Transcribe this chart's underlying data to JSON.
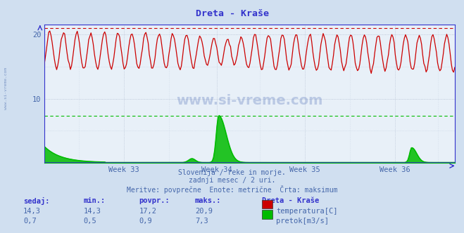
{
  "title": "Dreta - Kraše",
  "bg_color": "#d0dff0",
  "plot_bg_color": "#e8f0f8",
  "grid_color_major": "#b0bcd0",
  "grid_color_minor": "#c8d4e4",
  "temp_color": "#cc0000",
  "flow_color": "#00bb00",
  "axis_color": "#3333cc",
  "text_color": "#4466aa",
  "blue_line_color": "#3333cc",
  "ylabel_temp": "temperatura[C]",
  "ylabel_flow": "pretok[m3/s]",
  "week_labels": [
    "Week 33",
    "Week 34",
    "Week 35",
    "Week 36"
  ],
  "temp_max_line": 20.9,
  "flow_max_line": 7.3,
  "subtitle1": "Slovenija / reke in morje.",
  "subtitle2": "zadnji mesec / 2 uri.",
  "subtitle3": "Meritve: povprečne  Enote: metrične  Črta: maksimum",
  "stats_headers": [
    "sedaj:",
    "min.:",
    "povpr.:",
    "maks.:"
  ],
  "stats_temp": [
    "14,3",
    "14,3",
    "17,2",
    "20,9"
  ],
  "stats_flow": [
    "0,7",
    "0,5",
    "0,9",
    "7,3"
  ],
  "station_name": "Dreta - Kraše",
  "watermark": "www.si-vreme.com",
  "ylim": [
    0,
    21.5
  ],
  "n_points": 360
}
